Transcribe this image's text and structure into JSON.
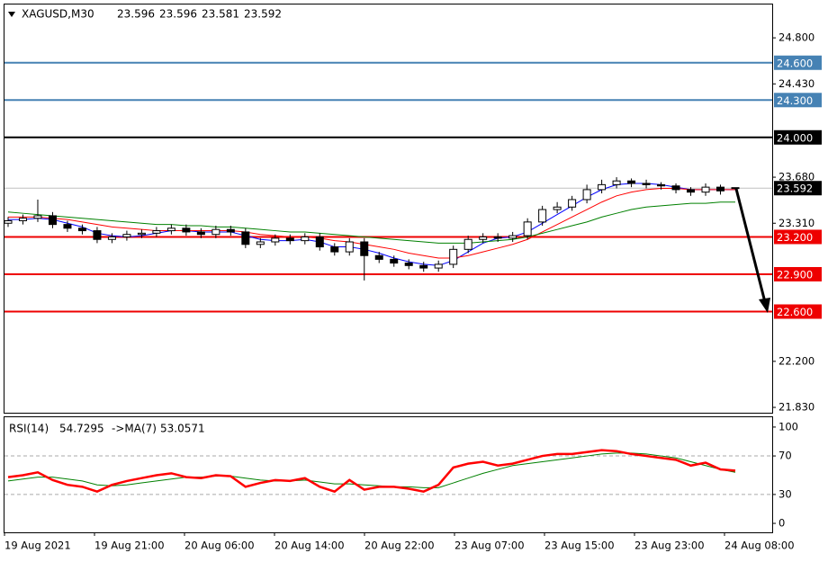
{
  "chart_data": {
    "type": "candlestick",
    "header": {
      "symbol": "XAGUSD,M30",
      "ohlc": [
        23.596,
        23.596,
        23.581,
        23.592
      ]
    },
    "ylim": [
      21.787,
      25.068
    ],
    "yticks": [
      {
        "value": 24.8,
        "label": "24.800"
      },
      {
        "value": 24.43,
        "label": "24.430"
      },
      {
        "value": 23.68,
        "label": "23.680"
      },
      {
        "value": 23.31,
        "label": "23.310"
      },
      {
        "value": 22.2,
        "label": "22.200"
      },
      {
        "value": 21.83,
        "label": "21.830"
      }
    ],
    "levels": [
      {
        "value": 24.6,
        "label": "24.600",
        "color": "#4682b4"
      },
      {
        "value": 24.3,
        "label": "24.300",
        "color": "#4682b4"
      },
      {
        "value": 24.0,
        "label": "24.000",
        "color": "#000000"
      },
      {
        "value": 23.592,
        "label": "23.592",
        "color": "#c0c0c0"
      },
      {
        "value": 23.2,
        "label": "23.200",
        "color": "#ee0000"
      },
      {
        "value": 22.9,
        "label": "22.900",
        "color": "#ee0000"
      },
      {
        "value": 22.6,
        "label": "22.600",
        "color": "#ee0000"
      }
    ],
    "time_labels": [
      "19 Aug 2021",
      "19 Aug 21:00",
      "20 Aug 06:00",
      "20 Aug 14:00",
      "20 Aug 22:00",
      "23 Aug 07:00",
      "23 Aug 15:00",
      "23 Aug 23:00",
      "24 Aug 08:00"
    ],
    "open": [
      23.31,
      23.33,
      23.35,
      23.37,
      23.3,
      23.27,
      23.25,
      23.18,
      23.2,
      23.22,
      23.23,
      23.25,
      23.27,
      23.24,
      23.22,
      23.26,
      23.24,
      23.14,
      23.16,
      23.19,
      23.17,
      23.2,
      23.12,
      23.08,
      23.16,
      23.05,
      23.02,
      22.99,
      22.97,
      22.95,
      22.98,
      23.1,
      23.18,
      23.2,
      23.19,
      23.21,
      23.32,
      23.42,
      23.44,
      23.5,
      23.58,
      23.62,
      23.65,
      23.63,
      23.62,
      23.61,
      23.58,
      23.56,
      23.6,
      23.596
    ],
    "high": [
      23.36,
      23.38,
      23.5,
      23.4,
      23.33,
      23.3,
      23.28,
      23.23,
      23.25,
      23.26,
      23.28,
      23.3,
      23.3,
      23.27,
      23.29,
      23.29,
      23.27,
      23.19,
      23.22,
      23.22,
      23.23,
      23.23,
      23.15,
      23.19,
      23.19,
      23.08,
      23.05,
      23.02,
      23.0,
      23.01,
      23.13,
      23.21,
      23.23,
      23.23,
      23.24,
      23.35,
      23.45,
      23.48,
      23.53,
      23.62,
      23.66,
      23.68,
      23.67,
      23.66,
      23.64,
      23.63,
      23.6,
      23.63,
      23.62,
      23.596
    ],
    "low": [
      23.28,
      23.3,
      23.32,
      23.27,
      23.24,
      23.22,
      23.15,
      23.15,
      23.17,
      23.19,
      23.2,
      23.22,
      23.21,
      23.19,
      23.19,
      23.21,
      23.11,
      23.11,
      23.13,
      23.14,
      23.14,
      23.09,
      23.05,
      23.05,
      22.85,
      22.99,
      22.96,
      22.94,
      22.92,
      22.92,
      22.95,
      23.07,
      23.15,
      23.16,
      23.16,
      23.18,
      23.29,
      23.39,
      23.41,
      23.47,
      23.55,
      23.59,
      23.6,
      23.59,
      23.58,
      23.55,
      23.53,
      23.53,
      23.54,
      23.581
    ],
    "close": [
      23.33,
      23.35,
      23.37,
      23.3,
      23.27,
      23.25,
      23.18,
      23.2,
      23.22,
      23.23,
      23.25,
      23.27,
      23.24,
      23.22,
      23.26,
      23.24,
      23.14,
      23.16,
      23.19,
      23.17,
      23.2,
      23.12,
      23.08,
      23.16,
      23.05,
      23.02,
      22.99,
      22.97,
      22.95,
      22.98,
      23.1,
      23.18,
      23.2,
      23.19,
      23.21,
      23.32,
      23.42,
      23.44,
      23.5,
      23.58,
      23.62,
      23.65,
      23.63,
      23.62,
      23.61,
      23.58,
      23.56,
      23.6,
      23.57,
      23.592
    ],
    "series": [
      {
        "color": "#0000ff",
        "values": [
          23.34,
          23.34,
          23.35,
          23.34,
          23.31,
          23.28,
          23.23,
          23.21,
          23.2,
          23.21,
          23.23,
          23.25,
          23.25,
          23.24,
          23.24,
          23.24,
          23.21,
          23.18,
          23.17,
          23.17,
          23.18,
          23.16,
          23.12,
          23.12,
          23.1,
          23.07,
          23.03,
          23.0,
          22.98,
          22.97,
          23.01,
          23.08,
          23.15,
          23.19,
          23.2,
          23.24,
          23.31,
          23.38,
          23.45,
          23.52,
          23.58,
          23.62,
          23.63,
          23.63,
          23.62,
          23.6,
          23.58,
          23.58,
          23.58,
          23.58
        ]
      },
      {
        "color": "#ff0000",
        "values": [
          23.36,
          23.36,
          23.36,
          23.35,
          23.34,
          23.32,
          23.3,
          23.28,
          23.27,
          23.26,
          23.25,
          23.25,
          23.25,
          23.25,
          23.25,
          23.25,
          23.24,
          23.22,
          23.21,
          23.2,
          23.2,
          23.19,
          23.17,
          23.16,
          23.14,
          23.12,
          23.1,
          23.07,
          23.05,
          23.03,
          23.03,
          23.05,
          23.08,
          23.11,
          23.14,
          23.18,
          23.24,
          23.3,
          23.36,
          23.42,
          23.48,
          23.53,
          23.56,
          23.58,
          23.59,
          23.59,
          23.58,
          23.58,
          23.58,
          23.58
        ]
      },
      {
        "color": "#008000",
        "values": [
          23.4,
          23.39,
          23.38,
          23.37,
          23.36,
          23.35,
          23.34,
          23.33,
          23.32,
          23.31,
          23.3,
          23.3,
          23.29,
          23.29,
          23.28,
          23.28,
          23.27,
          23.26,
          23.25,
          23.24,
          23.24,
          23.23,
          23.22,
          23.21,
          23.2,
          23.19,
          23.18,
          23.17,
          23.16,
          23.15,
          23.15,
          23.15,
          23.16,
          23.17,
          23.18,
          23.2,
          23.23,
          23.26,
          23.29,
          23.32,
          23.36,
          23.39,
          23.42,
          23.44,
          23.45,
          23.46,
          23.47,
          23.47,
          23.48,
          23.48
        ]
      }
    ],
    "rsi": {
      "label": "RSI(14)",
      "value": 54.7295,
      "ma_label": "->MA(7)",
      "ma_value": 53.0571,
      "ylim": [
        -9.3,
        110.2
      ],
      "yticks": [
        0,
        30,
        70,
        100
      ],
      "dashed_levels": [
        30,
        70
      ],
      "color": "#ff0000",
      "ma_color": "#008000",
      "values": [
        48,
        50,
        53,
        45,
        40,
        38,
        33,
        40,
        44,
        47,
        50,
        52,
        48,
        47,
        50,
        49,
        38,
        42,
        45,
        44,
        47,
        38,
        33,
        45,
        35,
        38,
        38,
        36,
        33,
        40,
        58,
        62,
        64,
        60,
        62,
        66,
        70,
        72,
        72,
        74,
        76,
        75,
        72,
        70,
        68,
        66,
        60,
        63,
        56,
        54.7295
      ],
      "ma": [
        44,
        46,
        48,
        48,
        46,
        44,
        40,
        39,
        40,
        42,
        44,
        46,
        48,
        48,
        49,
        49,
        47,
        45,
        44,
        44,
        45,
        43,
        41,
        41,
        40,
        39,
        38,
        38,
        37,
        37,
        42,
        47,
        52,
        56,
        60,
        62,
        64,
        66,
        68,
        70,
        72,
        73,
        73,
        72,
        70,
        68,
        64,
        60,
        56,
        53.0571
      ]
    }
  }
}
